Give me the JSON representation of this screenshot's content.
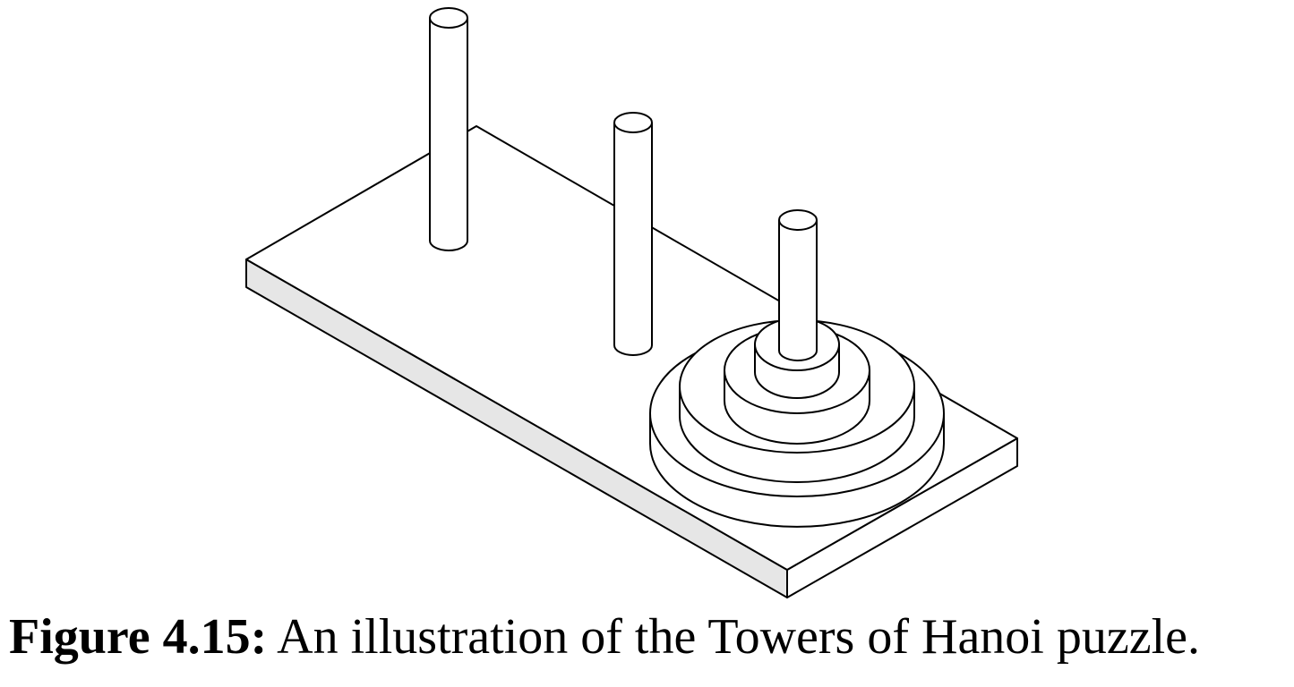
{
  "caption": {
    "label": "Figure 4.15:",
    "text": " An illustration of the Towers of Hanoi puzzle."
  },
  "figure": {
    "subject": "Towers of Hanoi",
    "peg_count": 3,
    "disk_count": 4,
    "disks_on_peg": [
      0,
      0,
      4
    ],
    "colors": {
      "stroke": "#000000",
      "fill": "#ffffff",
      "board_side": "#e6e6e6"
    }
  }
}
